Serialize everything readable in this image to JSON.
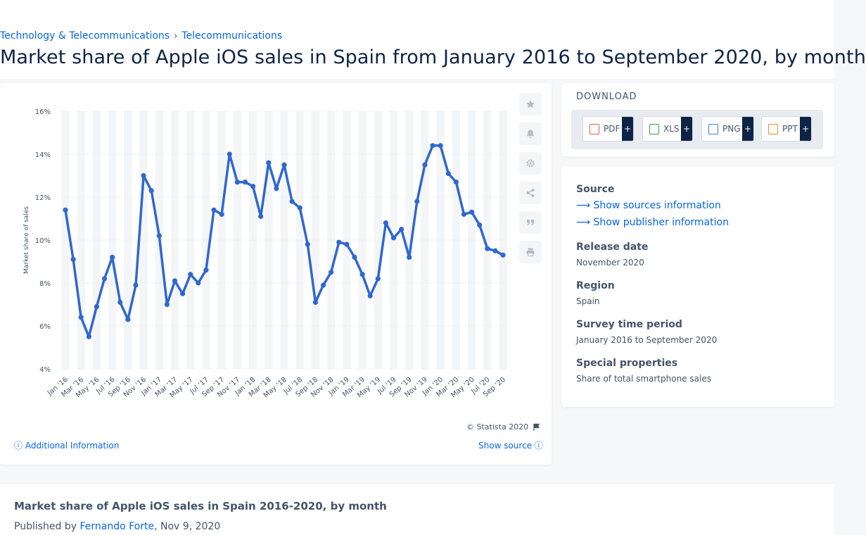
{
  "breadcrumb": {
    "items": [
      "Technology & Telecommunications",
      "Telecommunications"
    ],
    "separator": "›"
  },
  "title": "Market share of Apple iOS sales in Spain from January 2016 to September 2020, by month",
  "chart": {
    "copyright": "© Statista 2020",
    "additional_info": "Additional Information",
    "show_source": "Show source",
    "side_buttons": [
      "star-icon",
      "bell-icon",
      "gear-icon",
      "share-icon",
      "quote-icon",
      "print-icon"
    ]
  },
  "chart_data": {
    "type": "line",
    "ylabel": "Market share of sales",
    "xlabel": "",
    "title": "",
    "ylim": [
      4,
      16
    ],
    "yticks": [
      "4%",
      "6%",
      "8%",
      "10%",
      "12%",
      "14%",
      "16%"
    ],
    "tick_labels": [
      "Jan '16",
      "Mar '16",
      "May '16",
      "Jul '16",
      "Sep '16",
      "Nov '16",
      "Jan '17",
      "Mar '17",
      "May '17",
      "Jul '17",
      "Sep '17",
      "Nov '17",
      "Jan '18",
      "Mar '18",
      "May '18",
      "Jul '18",
      "Sep '18",
      "Nov '18",
      "Jan '19",
      "Mar '19",
      "May '19",
      "Jul '19",
      "Sep '19",
      "Nov '19",
      "Jan '20",
      "Mar '20",
      "May '20",
      "Jul '20",
      "Sep '20"
    ],
    "values": [
      11.4,
      9.1,
      6.4,
      5.5,
      6.9,
      8.2,
      9.2,
      7.1,
      6.3,
      7.9,
      13.0,
      12.3,
      10.2,
      7.0,
      8.1,
      7.5,
      8.4,
      8.0,
      8.6,
      11.4,
      11.2,
      14.0,
      12.7,
      12.7,
      12.5,
      11.1,
      13.6,
      12.4,
      13.5,
      11.8,
      11.5,
      9.8,
      7.1,
      7.9,
      8.5,
      9.9,
      9.8,
      9.2,
      8.4,
      7.4,
      8.2,
      10.8,
      10.1,
      10.5,
      9.2,
      11.8,
      13.5,
      14.4,
      14.4,
      13.1,
      12.7,
      11.2,
      11.3,
      10.7,
      9.6,
      9.5,
      9.3
    ],
    "grid": true,
    "color": "#2f68d0"
  },
  "download": {
    "heading": "DOWNLOAD",
    "buttons": [
      {
        "label": "PDF",
        "color": "#e25b4e"
      },
      {
        "label": "XLS",
        "color": "#3fa14a"
      },
      {
        "label": "PNG",
        "color": "#3b82d6"
      },
      {
        "label": "PPT",
        "color": "#e98a2b"
      }
    ],
    "plus": "+"
  },
  "info": {
    "source_label": "Source",
    "show_sources": "Show sources information",
    "show_publisher": "Show publisher information",
    "release_label": "Release date",
    "release_value": "November 2020",
    "region_label": "Region",
    "region_value": "Spain",
    "survey_label": "Survey time period",
    "survey_value": "January 2016 to September 2020",
    "special_label": "Special properties",
    "special_value": "Share of total smartphone sales"
  },
  "publication": {
    "title": "Market share of Apple iOS sales in Spain 2016-2020, by month",
    "published_by": "Published by ",
    "author": "Fernando Forte",
    "date": ", Nov 9, 2020"
  }
}
